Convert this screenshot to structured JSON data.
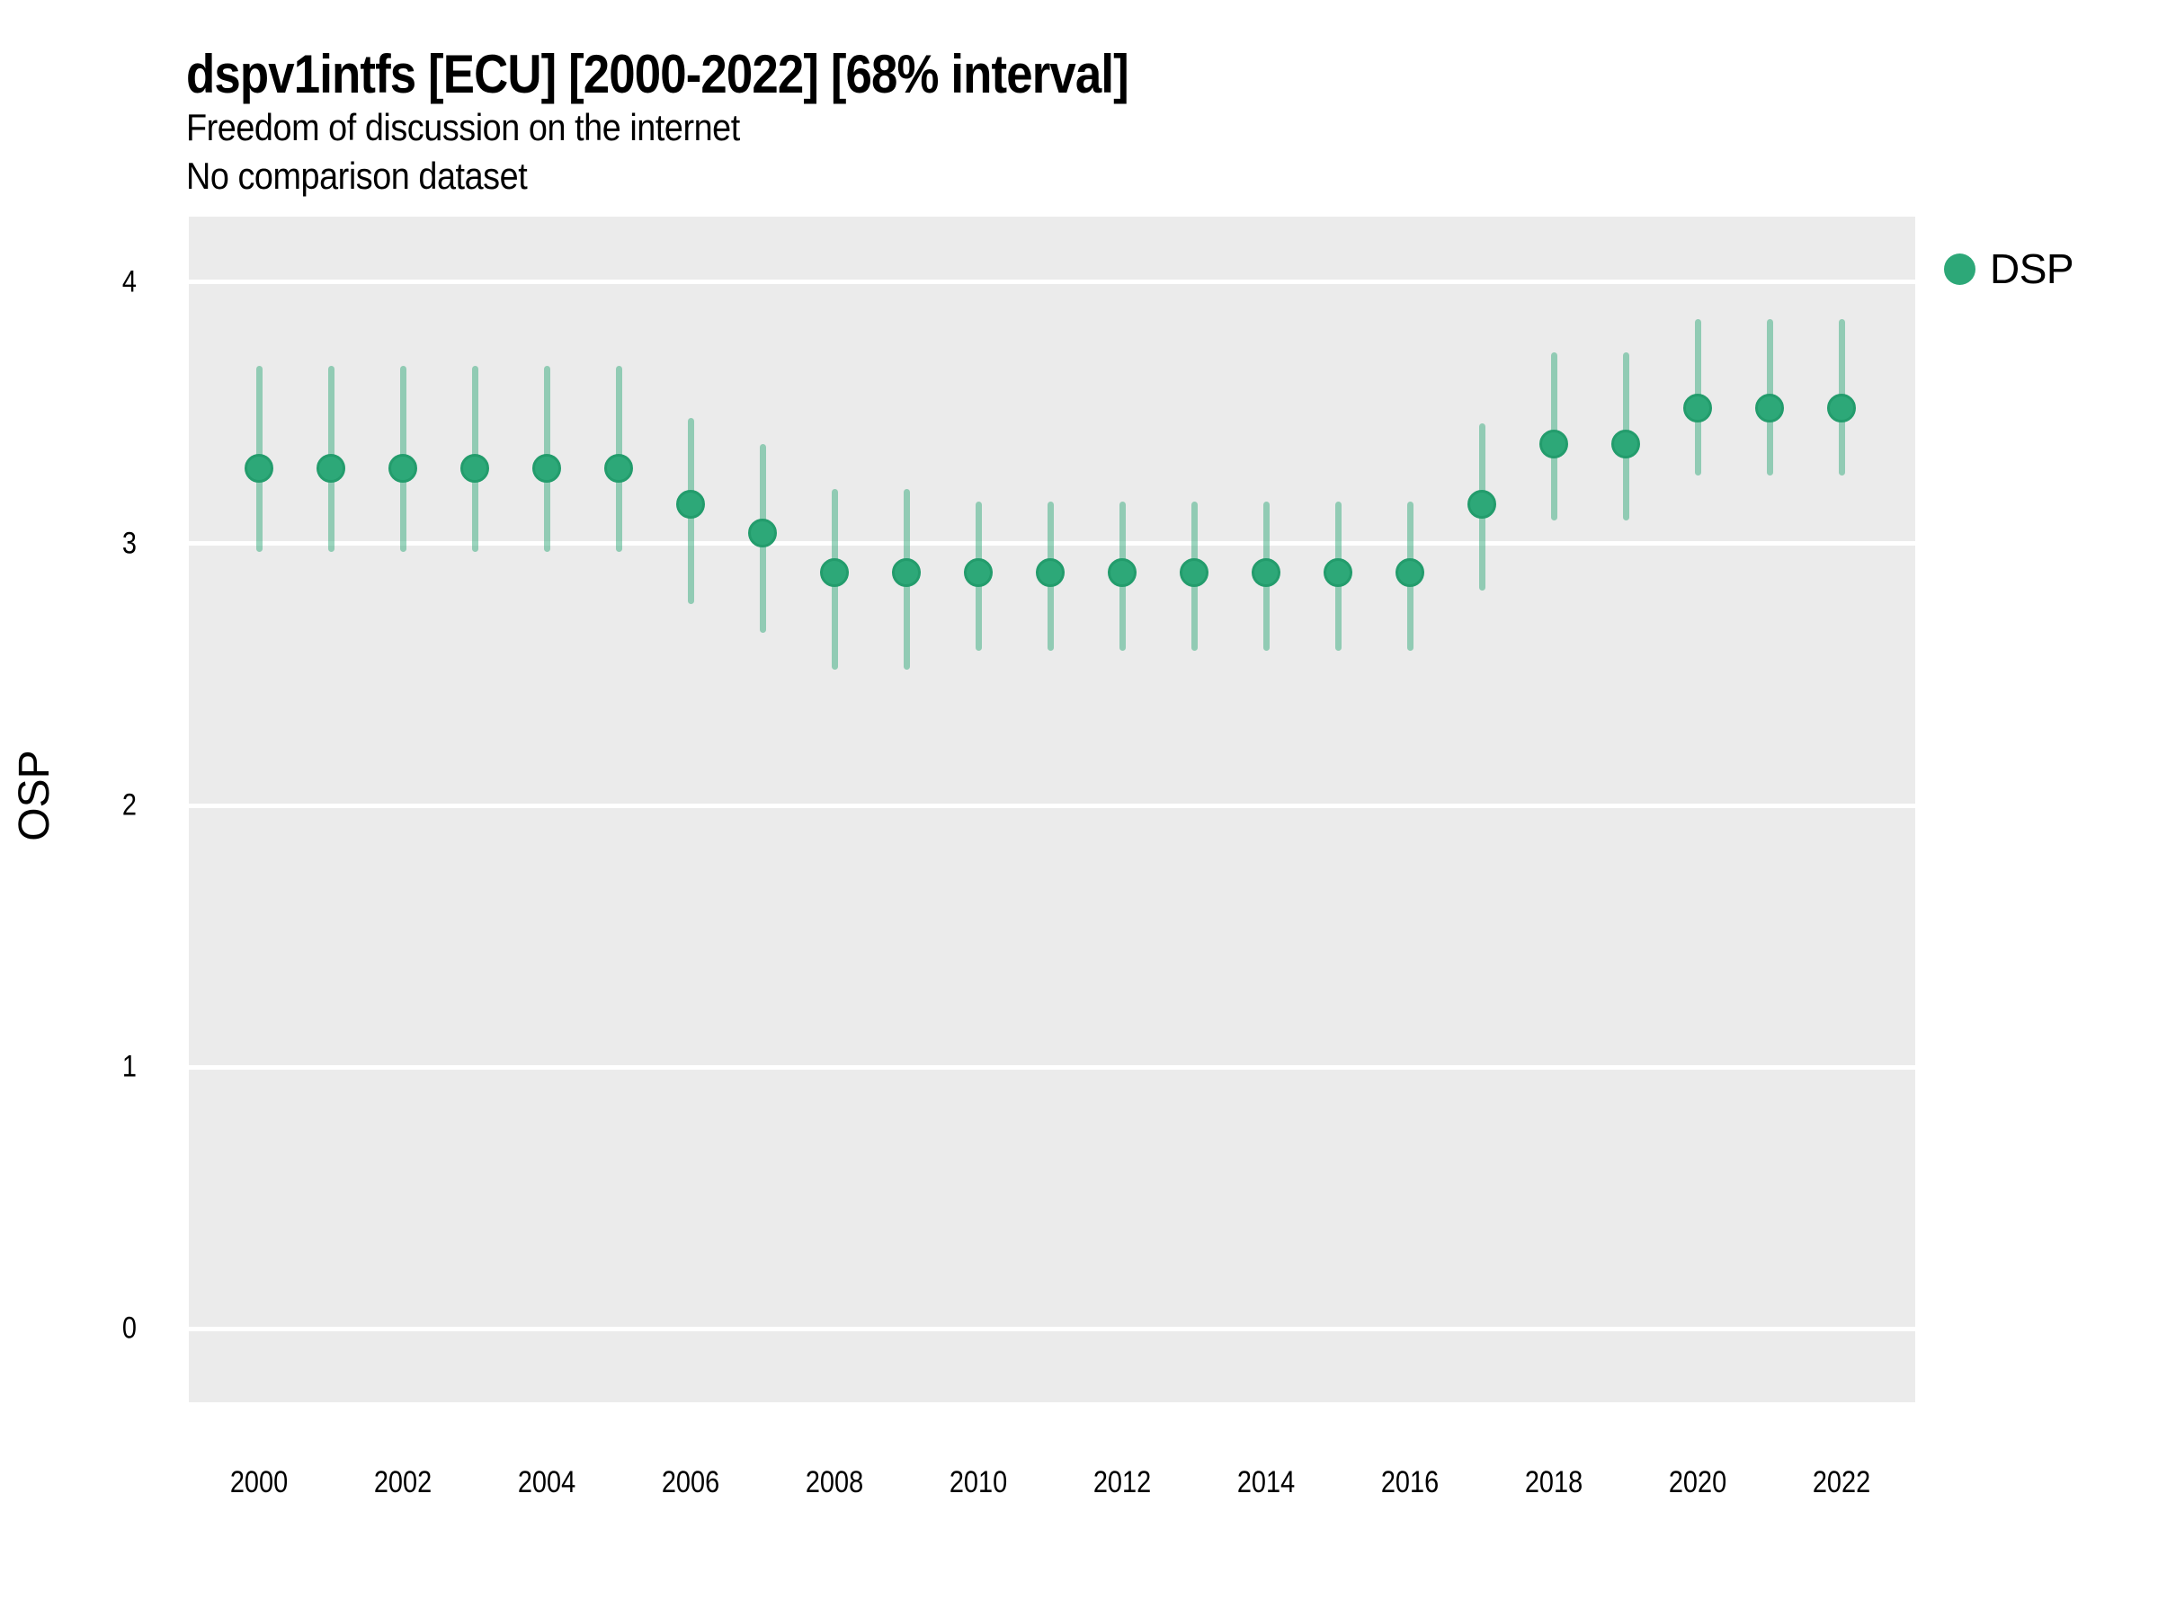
{
  "header": {
    "title": "dspv1intfs [ECU] [2000-2022] [68% interval]",
    "subtitle": "Freedom of discussion on the internet",
    "note": "No comparison dataset"
  },
  "legend": {
    "position": "right-top",
    "items": [
      {
        "label": "DSP",
        "swatch": "circle",
        "color": "#2da878"
      }
    ]
  },
  "colors": {
    "point_fill": "#2da878",
    "point_border": "#239c6c",
    "interval": "rgba(45,168,120,0.48)",
    "panel_bg": "#EBEBEB",
    "gridline": "#FFFFFF",
    "text": "#000000",
    "page_bg": "#FFFFFF"
  },
  "chart_data": {
    "type": "scatter",
    "variant": "pointrange",
    "title": "dspv1intfs [ECU] [2000-2022] [68% interval]",
    "subtitle": "Freedom of discussion on the internet",
    "note": "No comparison dataset",
    "interval_label": "68% interval",
    "country_code": "ECU",
    "xlabel": "",
    "ylabel": "OSP",
    "ylim": [
      -0.28,
      4.25
    ],
    "xlim": [
      1999.025,
      2023.025
    ],
    "yticks": [
      0,
      1,
      2,
      3,
      4
    ],
    "xticks": [
      2000,
      2002,
      2004,
      2006,
      2008,
      2010,
      2012,
      2014,
      2016,
      2018,
      2020,
      2022
    ],
    "grid": "horizontal-major-only",
    "legend_position": "right",
    "series": [
      {
        "name": "DSP",
        "points": [
          {
            "year": 2000,
            "est": 3.29,
            "lo": 2.97,
            "hi": 3.68
          },
          {
            "year": 2001,
            "est": 3.29,
            "lo": 2.97,
            "hi": 3.68
          },
          {
            "year": 2002,
            "est": 3.29,
            "lo": 2.97,
            "hi": 3.68
          },
          {
            "year": 2003,
            "est": 3.29,
            "lo": 2.97,
            "hi": 3.68
          },
          {
            "year": 2004,
            "est": 3.29,
            "lo": 2.97,
            "hi": 3.68
          },
          {
            "year": 2005,
            "est": 3.29,
            "lo": 2.97,
            "hi": 3.68
          },
          {
            "year": 2006,
            "est": 3.15,
            "lo": 2.77,
            "hi": 3.48
          },
          {
            "year": 2007,
            "est": 3.04,
            "lo": 2.66,
            "hi": 3.38
          },
          {
            "year": 2008,
            "est": 2.89,
            "lo": 2.52,
            "hi": 3.21
          },
          {
            "year": 2009,
            "est": 2.89,
            "lo": 2.52,
            "hi": 3.21
          },
          {
            "year": 2010,
            "est": 2.89,
            "lo": 2.59,
            "hi": 3.16
          },
          {
            "year": 2011,
            "est": 2.89,
            "lo": 2.59,
            "hi": 3.16
          },
          {
            "year": 2012,
            "est": 2.89,
            "lo": 2.59,
            "hi": 3.16
          },
          {
            "year": 2013,
            "est": 2.89,
            "lo": 2.59,
            "hi": 3.16
          },
          {
            "year": 2014,
            "est": 2.89,
            "lo": 2.59,
            "hi": 3.16
          },
          {
            "year": 2015,
            "est": 2.89,
            "lo": 2.59,
            "hi": 3.16
          },
          {
            "year": 2016,
            "est": 2.89,
            "lo": 2.59,
            "hi": 3.16
          },
          {
            "year": 2017,
            "est": 3.15,
            "lo": 2.82,
            "hi": 3.46
          },
          {
            "year": 2018,
            "est": 3.38,
            "lo": 3.09,
            "hi": 3.73
          },
          {
            "year": 2019,
            "est": 3.38,
            "lo": 3.09,
            "hi": 3.73
          },
          {
            "year": 2020,
            "est": 3.52,
            "lo": 3.26,
            "hi": 3.86
          },
          {
            "year": 2021,
            "est": 3.52,
            "lo": 3.26,
            "hi": 3.86
          },
          {
            "year": 2022,
            "est": 3.52,
            "lo": 3.26,
            "hi": 3.86
          }
        ]
      }
    ]
  }
}
